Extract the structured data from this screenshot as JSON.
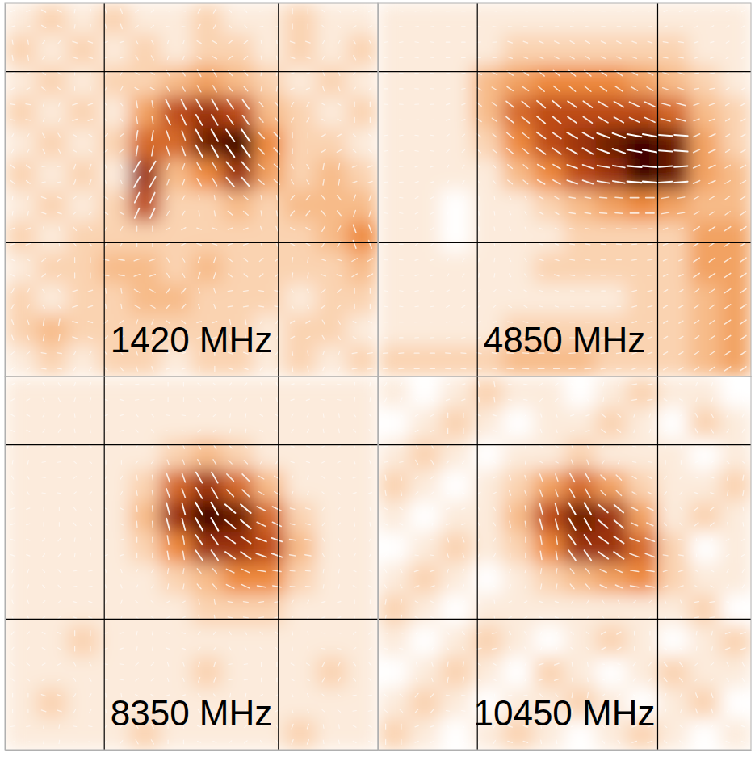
{
  "chart_data": [
    {
      "type": "heatmap",
      "title": "1420 MHz",
      "xlim": [
        0,
        12
      ],
      "ylim": [
        0,
        12
      ],
      "xticks": [
        3.2,
        8.8
      ],
      "yticks": [
        4.3,
        9.8
      ],
      "grid": true,
      "tick_labels": false,
      "zlim": [
        0,
        10
      ],
      "values": [
        [
          1,
          2,
          1,
          2,
          1,
          1,
          2,
          1,
          1,
          2,
          1,
          1
        ],
        [
          2,
          1,
          2,
          1,
          2,
          1,
          2,
          2,
          1,
          2,
          1,
          2
        ],
        [
          1,
          2,
          1,
          2,
          2,
          3,
          4,
          3,
          2,
          1,
          2,
          1
        ],
        [
          2,
          1,
          2,
          1,
          4,
          7,
          8,
          7,
          3,
          2,
          1,
          2
        ],
        [
          1,
          2,
          1,
          2,
          6,
          6,
          9,
          10,
          5,
          2,
          2,
          1
        ],
        [
          2,
          1,
          2,
          1,
          8,
          3,
          5,
          8,
          4,
          2,
          3,
          2
        ],
        [
          1,
          2,
          1,
          2,
          7,
          2,
          2,
          3,
          2,
          3,
          3,
          3
        ],
        [
          2,
          1,
          2,
          2,
          2,
          2,
          2,
          2,
          2,
          2,
          3,
          5
        ],
        [
          1,
          2,
          2,
          3,
          3,
          2,
          3,
          2,
          2,
          2,
          2,
          3
        ],
        [
          2,
          1,
          2,
          2,
          3,
          3,
          2,
          2,
          2,
          1,
          2,
          2
        ],
        [
          2,
          3,
          2,
          2,
          2,
          2,
          2,
          2,
          1,
          2,
          2,
          1
        ],
        [
          1,
          2,
          1,
          2,
          2,
          1,
          2,
          2,
          1,
          2,
          1,
          2
        ]
      ],
      "angles": [
        [
          20,
          150,
          80,
          110,
          40,
          170,
          60,
          130,
          10,
          90,
          140,
          30
        ],
        [
          100,
          50,
          160,
          20,
          120,
          70,
          150,
          40,
          100,
          160,
          60,
          120
        ],
        [
          30,
          140,
          90,
          60,
          150,
          120,
          120,
          130,
          80,
          20,
          110,
          50
        ],
        [
          170,
          70,
          20,
          130,
          100,
          115,
          120,
          125,
          130,
          60,
          150,
          90
        ],
        [
          60,
          120,
          150,
          40,
          80,
          110,
          120,
          125,
          135,
          90,
          30,
          140
        ],
        [
          140,
          10,
          70,
          110,
          60,
          70,
          120,
          130,
          140,
          120,
          80,
          20
        ],
        [
          80,
          160,
          40,
          150,
          65,
          60,
          100,
          140,
          100,
          50,
          130,
          70
        ],
        [
          20,
          100,
          130,
          60,
          90,
          30,
          160,
          20,
          110,
          150,
          60,
          110
        ],
        [
          150,
          40,
          90,
          170,
          20,
          120,
          70,
          140,
          40,
          80,
          160,
          30
        ],
        [
          60,
          130,
          20,
          100,
          150,
          50,
          110,
          10,
          170,
          120,
          40,
          90
        ],
        [
          110,
          80,
          160,
          40,
          70,
          140,
          20,
          100,
          60,
          30,
          120,
          150
        ],
        [
          40,
          170,
          60,
          130,
          110,
          20,
          90,
          160,
          50,
          100,
          70,
          10
        ]
      ]
    },
    {
      "type": "heatmap",
      "title": "4850 MHz",
      "xlim": [
        0,
        12
      ],
      "ylim": [
        0,
        12
      ],
      "xticks": [
        3.2,
        9.0
      ],
      "yticks": [
        4.3,
        9.8
      ],
      "grid": true,
      "tick_labels": false,
      "zlim": [
        0,
        10
      ],
      "values": [
        [
          1,
          1,
          1,
          1,
          1,
          1,
          1,
          1,
          1,
          1,
          1,
          1
        ],
        [
          1,
          1,
          1,
          1,
          2,
          2,
          2,
          2,
          2,
          2,
          1,
          1
        ],
        [
          1,
          1,
          1,
          3,
          4,
          5,
          5,
          5,
          4,
          3,
          2,
          1
        ],
        [
          1,
          1,
          1,
          3,
          6,
          7,
          7,
          7,
          7,
          6,
          3,
          2
        ],
        [
          1,
          1,
          1,
          2,
          5,
          7,
          8,
          9,
          10,
          9,
          4,
          2
        ],
        [
          1,
          1,
          1,
          1,
          3,
          5,
          7,
          8,
          10,
          9,
          4,
          3
        ],
        [
          1,
          1,
          0,
          1,
          1,
          2,
          3,
          4,
          5,
          4,
          3,
          3
        ],
        [
          1,
          1,
          0,
          1,
          1,
          1,
          2,
          2,
          2,
          2,
          4,
          4
        ],
        [
          1,
          1,
          1,
          1,
          1,
          2,
          2,
          2,
          2,
          2,
          4,
          4
        ],
        [
          1,
          1,
          1,
          1,
          1,
          1,
          1,
          1,
          2,
          2,
          3,
          4
        ],
        [
          1,
          1,
          1,
          1,
          2,
          2,
          2,
          2,
          2,
          2,
          3,
          4
        ],
        [
          2,
          2,
          2,
          2,
          3,
          3,
          3,
          2,
          2,
          2,
          3,
          4
        ]
      ],
      "angles": [
        [
          170,
          10,
          0,
          170,
          175,
          5,
          170,
          0,
          10,
          20,
          30,
          30
        ],
        [
          10,
          170,
          0,
          5,
          160,
          155,
          150,
          155,
          160,
          170,
          20,
          30
        ],
        [
          0,
          175,
          10,
          150,
          145,
          140,
          140,
          145,
          150,
          160,
          10,
          30
        ],
        [
          175,
          5,
          20,
          145,
          140,
          140,
          145,
          150,
          155,
          165,
          20,
          30
        ],
        [
          10,
          170,
          40,
          140,
          140,
          145,
          150,
          160,
          170,
          175,
          25,
          30
        ],
        [
          5,
          20,
          60,
          130,
          140,
          150,
          160,
          170,
          175,
          5,
          25,
          30
        ],
        [
          170,
          30,
          80,
          100,
          120,
          150,
          170,
          175,
          0,
          10,
          30,
          35
        ],
        [
          0,
          40,
          90,
          100,
          110,
          160,
          170,
          175,
          5,
          20,
          35,
          35
        ],
        [
          175,
          20,
          60,
          80,
          120,
          160,
          170,
          0,
          10,
          25,
          35,
          35
        ],
        [
          170,
          10,
          30,
          40,
          150,
          165,
          175,
          0,
          15,
          30,
          35,
          35
        ],
        [
          0,
          5,
          10,
          20,
          170,
          175,
          0,
          5,
          20,
          30,
          35,
          35
        ],
        [
          5,
          0,
          175,
          170,
          175,
          0,
          5,
          10,
          20,
          30,
          35,
          35
        ]
      ]
    },
    {
      "type": "heatmap",
      "title": "8350 MHz",
      "xlim": [
        0,
        12
      ],
      "ylim": [
        0,
        12
      ],
      "xticks": [
        3.2,
        8.8
      ],
      "yticks": [
        4.2,
        9.8
      ],
      "grid": true,
      "tick_labels": false,
      "zlim": [
        0,
        10
      ],
      "values": [
        [
          1,
          1,
          1,
          1,
          1,
          1,
          1,
          1,
          1,
          1,
          1,
          1
        ],
        [
          1,
          1,
          1,
          1,
          1,
          1,
          1,
          1,
          1,
          1,
          1,
          1
        ],
        [
          1,
          1,
          1,
          1,
          1,
          2,
          3,
          2,
          1,
          1,
          1,
          1
        ],
        [
          1,
          1,
          1,
          1,
          2,
          6,
          8,
          6,
          3,
          1,
          1,
          1
        ],
        [
          1,
          1,
          1,
          1,
          3,
          8,
          10,
          9,
          6,
          2,
          1,
          1
        ],
        [
          1,
          1,
          1,
          1,
          2,
          5,
          8,
          8,
          7,
          3,
          1,
          1
        ],
        [
          1,
          1,
          1,
          1,
          1,
          2,
          3,
          5,
          5,
          2,
          1,
          1
        ],
        [
          1,
          1,
          1,
          1,
          1,
          1,
          2,
          2,
          2,
          1,
          1,
          1
        ],
        [
          1,
          1,
          2,
          1,
          1,
          1,
          1,
          1,
          1,
          1,
          1,
          1
        ],
        [
          1,
          1,
          1,
          1,
          1,
          1,
          2,
          1,
          1,
          1,
          2,
          1
        ],
        [
          1,
          2,
          1,
          1,
          1,
          1,
          1,
          1,
          1,
          1,
          1,
          1
        ],
        [
          1,
          1,
          1,
          1,
          2,
          1,
          1,
          1,
          1,
          2,
          1,
          1
        ]
      ],
      "angles": [
        [
          30,
          120,
          70,
          160,
          10,
          90,
          140,
          50,
          110,
          20,
          170,
          80
        ],
        [
          150,
          60,
          100,
          20,
          130,
          170,
          40,
          80,
          150,
          60,
          100,
          130
        ],
        [
          80,
          10,
          140,
          90,
          50,
          110,
          120,
          135,
          60,
          160,
          30,
          110
        ],
        [
          120,
          170,
          40,
          60,
          100,
          110,
          120,
          135,
          150,
          70,
          140,
          20
        ],
        [
          20,
          90,
          130,
          150,
          95,
          105,
          120,
          140,
          155,
          165,
          50,
          100
        ],
        [
          160,
          50,
          80,
          20,
          90,
          100,
          125,
          145,
          160,
          170,
          120,
          60
        ],
        [
          70,
          130,
          10,
          110,
          60,
          80,
          130,
          155,
          170,
          175,
          80,
          150
        ],
        [
          110,
          40,
          160,
          70,
          140,
          30,
          100,
          170,
          10,
          60,
          20,
          90
        ],
        [
          50,
          150,
          90,
          20,
          80,
          160,
          50,
          120,
          140,
          100,
          170,
          40
        ],
        [
          140,
          30,
          120,
          170,
          40,
          110,
          70,
          10,
          90,
          150,
          60,
          130
        ],
        [
          90,
          160,
          60,
          100,
          150,
          20,
          130,
          80,
          30,
          110,
          140,
          10
        ],
        [
          10,
          80,
          170,
          50,
          120,
          90,
          160,
          40,
          120,
          70,
          100,
          150
        ]
      ]
    },
    {
      "type": "heatmap",
      "title": "10450 MHz",
      "xlim": [
        0,
        12
      ],
      "ylim": [
        0,
        12
      ],
      "xticks": [
        3.2,
        9.0
      ],
      "yticks": [
        4.2,
        9.8
      ],
      "grid": true,
      "tick_labels": false,
      "zlim": [
        0,
        10
      ],
      "values": [
        [
          1,
          0,
          1,
          2,
          1,
          1,
          0,
          1,
          2,
          1,
          1,
          0
        ],
        [
          0,
          1,
          2,
          1,
          0,
          1,
          1,
          2,
          1,
          0,
          2,
          1
        ],
        [
          1,
          2,
          1,
          0,
          1,
          1,
          2,
          1,
          1,
          1,
          0,
          1
        ],
        [
          2,
          1,
          0,
          1,
          2,
          4,
          6,
          4,
          2,
          1,
          1,
          2
        ],
        [
          1,
          0,
          1,
          1,
          3,
          7,
          9,
          8,
          4,
          1,
          2,
          1
        ],
        [
          0,
          1,
          2,
          1,
          2,
          5,
          8,
          8,
          6,
          2,
          0,
          1
        ],
        [
          1,
          2,
          1,
          0,
          1,
          2,
          3,
          4,
          5,
          2,
          1,
          1
        ],
        [
          2,
          1,
          0,
          1,
          1,
          1,
          1,
          1,
          1,
          1,
          2,
          0
        ],
        [
          1,
          0,
          1,
          2,
          1,
          0,
          1,
          2,
          1,
          0,
          1,
          2
        ],
        [
          0,
          1,
          2,
          1,
          0,
          2,
          1,
          0,
          1,
          2,
          1,
          1
        ],
        [
          1,
          2,
          1,
          0,
          1,
          1,
          2,
          1,
          0,
          1,
          2,
          0
        ],
        [
          2,
          1,
          0,
          1,
          2,
          1,
          0,
          1,
          2,
          1,
          0,
          1
        ]
      ],
      "angles": [
        [
          60,
          140,
          20,
          100,
          170,
          40,
          120,
          80,
          10,
          150,
          70,
          110
        ],
        [
          130,
          30,
          90,
          160,
          50,
          110,
          20,
          140,
          70,
          30,
          120,
          60
        ],
        [
          10,
          120,
          50,
          140,
          80,
          150,
          110,
          60,
          170,
          90,
          20,
          140
        ],
        [
          100,
          40,
          160,
          30,
          110,
          110,
          120,
          135,
          150,
          50,
          160,
          80
        ],
        [
          150,
          80,
          20,
          120,
          100,
          105,
          120,
          140,
          155,
          130,
          40,
          100
        ],
        [
          40,
          170,
          110,
          60,
          90,
          100,
          125,
          145,
          160,
          170,
          90,
          30
        ],
        [
          120,
          20,
          70,
          140,
          70,
          80,
          130,
          155,
          170,
          20,
          150,
          60
        ],
        [
          80,
          150,
          40,
          100,
          30,
          160,
          60,
          120,
          40,
          110,
          10,
          170
        ],
        [
          170,
          60,
          130,
          10,
          120,
          70,
          140,
          30,
          90,
          160,
          80,
          20
        ],
        [
          30,
          110,
          80,
          150,
          60,
          20,
          100,
          170,
          50,
          130,
          40,
          120
        ],
        [
          140,
          50,
          170,
          90,
          10,
          130,
          80,
          40,
          150,
          70,
          110,
          60
        ],
        [
          90,
          20,
          120,
          60,
          160,
          100,
          30,
          130,
          20,
          140,
          50,
          160
        ]
      ]
    }
  ]
}
